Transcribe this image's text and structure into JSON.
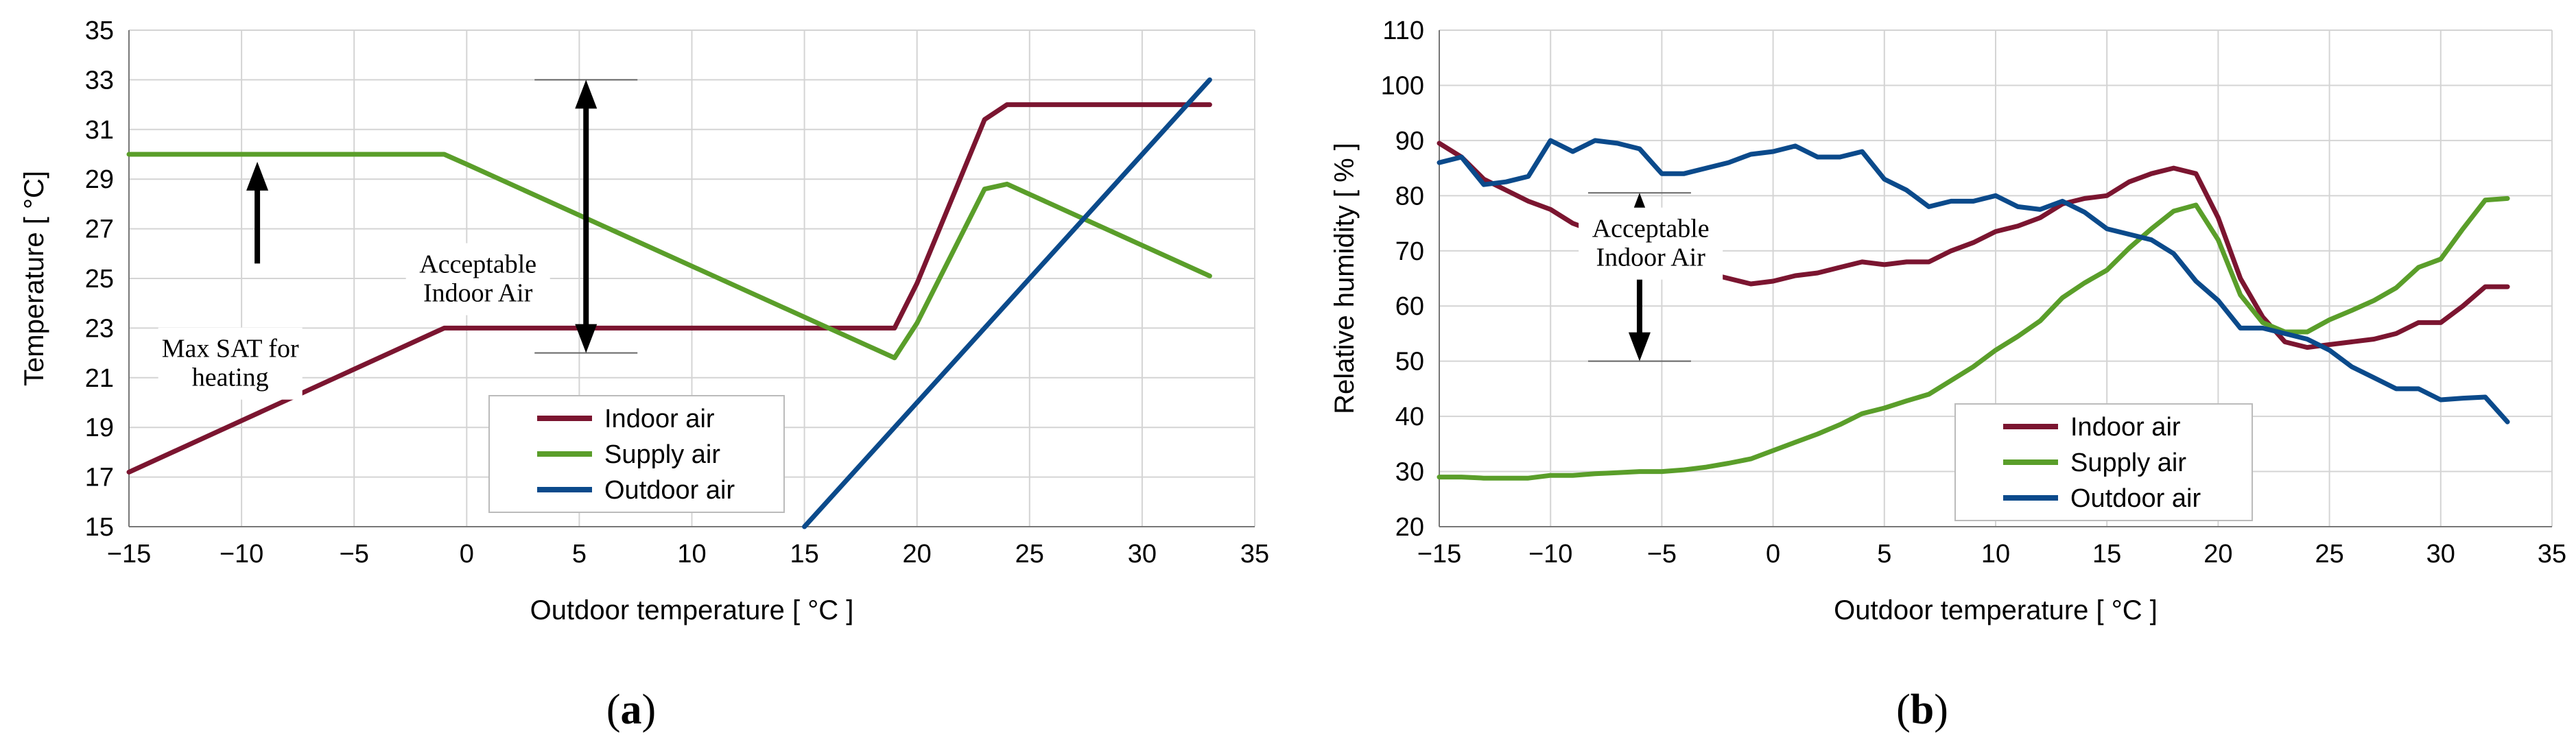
{
  "colors": {
    "indoor": "#7b1530",
    "supply": "#5a9e2a",
    "outdoor": "#0b4a8b"
  },
  "chart_data": [
    {
      "panel": "a",
      "type": "line",
      "panel_label_open": "(",
      "panel_label_letter": "a",
      "panel_label_close": ")",
      "xlabel": "Outdoor temperature [ °C ]",
      "ylabel": "Temperature [ °C]",
      "xlim": [
        -15,
        35
      ],
      "ylim": [
        15,
        35
      ],
      "xticks": [
        -15,
        -10,
        -5,
        0,
        5,
        10,
        15,
        20,
        25,
        30,
        35
      ],
      "yticks": [
        15,
        17,
        19,
        21,
        23,
        25,
        27,
        29,
        31,
        33,
        35
      ],
      "grid": true,
      "legend_position": "bottom-center",
      "series": [
        {
          "name": "Indoor air",
          "color": "#7b1530",
          "x": [
            -15,
            -1,
            0,
            19,
            20,
            23,
            24,
            33
          ],
          "y": [
            17.2,
            23,
            23,
            23,
            24.8,
            31.4,
            32,
            32
          ]
        },
        {
          "name": "Supply air",
          "color": "#5a9e2a",
          "x": [
            -15,
            -1,
            0,
            19,
            20,
            23,
            24,
            33
          ],
          "y": [
            30,
            30,
            29.6,
            21.8,
            23.2,
            28.6,
            28.8,
            25.1
          ]
        },
        {
          "name": "Outdoor air",
          "color": "#0b4a8b",
          "x": [
            15,
            33
          ],
          "y": [
            15,
            33
          ]
        }
      ],
      "annotations": [
        {
          "id": "acceptable",
          "lines": [
            "Acceptable",
            "Indoor Air"
          ],
          "x": 0.5,
          "y": 24.9
        },
        {
          "id": "max-sat",
          "lines": [
            "Max SAT for",
            "heating"
          ],
          "x": -10.5,
          "y": 21.5
        }
      ],
      "ranges": [
        {
          "id": "acceptable-range",
          "x": 5.3,
          "y_low": 22,
          "y_high": 33
        },
        {
          "id": "max-sat-arrow",
          "x": -9.3,
          "y_low": 25.6,
          "y_high": 29.7
        }
      ]
    },
    {
      "panel": "b",
      "type": "line",
      "panel_label_open": "(",
      "panel_label_letter": "b",
      "panel_label_close": ")",
      "xlabel": "Outdoor temperature [ °C ]",
      "ylabel": "Relative humidity [ % ]",
      "xlim": [
        -15,
        35
      ],
      "ylim": [
        20,
        110
      ],
      "xticks": [
        -15,
        -10,
        -5,
        0,
        5,
        10,
        15,
        20,
        25,
        30,
        35
      ],
      "yticks": [
        20,
        30,
        40,
        50,
        60,
        70,
        80,
        90,
        100,
        110
      ],
      "grid": true,
      "legend_position": "bottom-center",
      "series": [
        {
          "name": "Indoor air",
          "color": "#7b1530",
          "x": [
            -15,
            -14,
            -13,
            -12,
            -11,
            -10,
            -9,
            -8,
            -7,
            -6,
            -5,
            -4,
            -3,
            -2,
            -1,
            0,
            1,
            2,
            3,
            4,
            5,
            6,
            7,
            8,
            9,
            10,
            11,
            12,
            13,
            14,
            15,
            16,
            17,
            18,
            19,
            20,
            21,
            22,
            23,
            24,
            25,
            26,
            27,
            28,
            29,
            30,
            31,
            32,
            33
          ],
          "y": [
            89.5,
            87,
            83,
            81,
            79,
            77.5,
            75,
            73.5,
            72,
            70.5,
            68.5,
            67,
            66,
            65,
            64,
            64.5,
            65.5,
            66,
            67,
            68,
            67.5,
            68,
            68,
            70,
            71.5,
            73.5,
            74.5,
            76,
            78.5,
            79.5,
            80,
            82.5,
            84,
            85,
            84,
            76,
            65,
            58,
            53.5,
            52.5,
            53,
            53.5,
            54,
            55,
            57,
            57,
            60,
            63.5,
            63.5
          ]
        },
        {
          "name": "Supply air",
          "color": "#5a9e2a",
          "x": [
            -15,
            -14,
            -13,
            -12,
            -11,
            -10,
            -9,
            -8,
            -7,
            -6,
            -5,
            -4,
            -3,
            -2,
            -1,
            0,
            1,
            2,
            3,
            4,
            5,
            6,
            7,
            8,
            9,
            10,
            11,
            12,
            13,
            14,
            15,
            16,
            17,
            18,
            19,
            20,
            21,
            22,
            23,
            24,
            25,
            26,
            27,
            28,
            29,
            30,
            31,
            32,
            33
          ],
          "y": [
            29,
            29,
            28.8,
            28.8,
            28.8,
            29.3,
            29.3,
            29.6,
            29.8,
            30,
            30,
            30.3,
            30.8,
            31.5,
            32.3,
            33.8,
            35.3,
            36.8,
            38.5,
            40.5,
            41.5,
            42.8,
            44,
            46.5,
            49,
            52,
            54.5,
            57.3,
            61.5,
            64.2,
            66.5,
            70.5,
            74,
            77.2,
            78.3,
            72,
            62,
            57,
            55.3,
            55.3,
            57.5,
            59.2,
            61,
            63.3,
            67,
            68.5,
            74,
            79.2,
            79.5
          ]
        },
        {
          "name": "Outdoor air",
          "color": "#0b4a8b",
          "x": [
            -15,
            -14,
            -13,
            -12,
            -11,
            -10,
            -9,
            -8,
            -7,
            -6,
            -5,
            -4,
            -3,
            -2,
            -1,
            0,
            1,
            2,
            3,
            4,
            5,
            6,
            7,
            8,
            9,
            10,
            11,
            12,
            13,
            14,
            15,
            16,
            17,
            18,
            19,
            20,
            21,
            22,
            23,
            24,
            25,
            26,
            27,
            28,
            29,
            30,
            31,
            32,
            33
          ],
          "y": [
            86,
            87,
            82,
            82.5,
            83.5,
            90,
            88,
            90,
            89.5,
            88.5,
            84,
            84,
            85,
            86,
            87.5,
            88,
            89,
            87,
            87,
            88,
            83,
            81,
            78,
            79,
            79,
            80,
            78,
            77.5,
            79,
            77,
            74,
            73,
            72,
            69.5,
            64.5,
            61,
            56,
            56,
            55,
            54,
            52,
            49,
            47,
            45,
            45,
            43,
            43.3,
            43.5,
            39
          ]
        }
      ],
      "annotations": [
        {
          "id": "acceptable",
          "lines": [
            "Acceptable",
            "Indoor Air"
          ],
          "x": -5.5,
          "y": 71
        }
      ],
      "ranges": [
        {
          "id": "acceptable-range",
          "x": -6,
          "y_low": 50,
          "y_high": 80.5
        }
      ]
    }
  ]
}
